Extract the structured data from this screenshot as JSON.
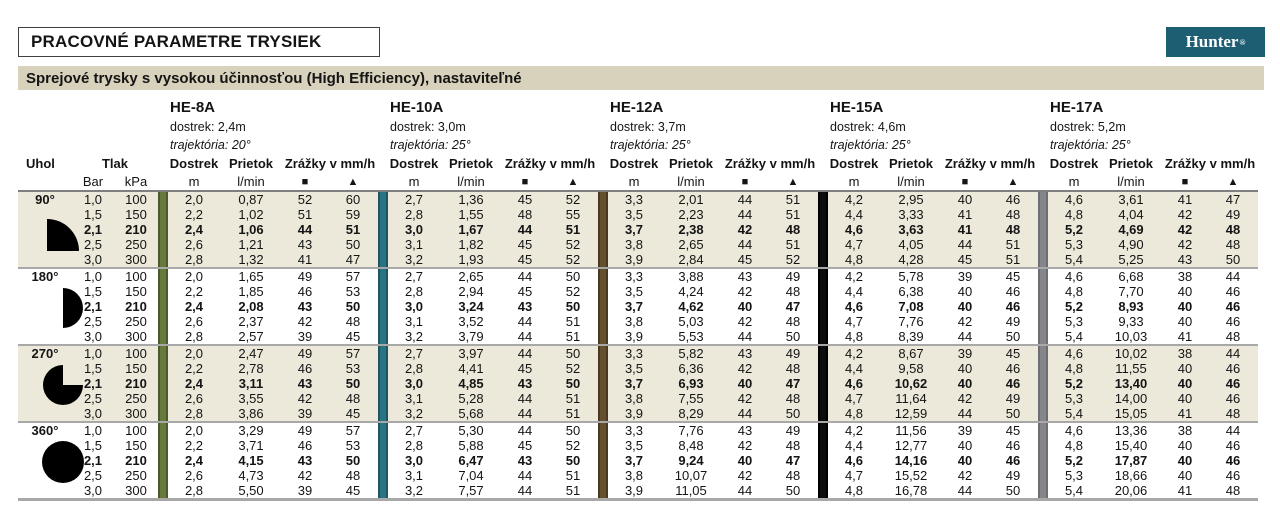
{
  "title": "PRACOVNÉ PARAMETRE TRYSIEK",
  "logo": {
    "text": "Hunter",
    "reg": "®"
  },
  "subtitle": "Sprejové trysky s vysokou účinnosťou (High Efficiency), nastaviteľné",
  "colors": {
    "subtitle_bg": "#d8d2bc",
    "band_bg": "#ece9da",
    "logo_bg": "#1e5e72",
    "head_rule": "#7f7f7f",
    "block_rule": "#a8a8a8"
  },
  "table": {
    "col_headers": {
      "uhol": "Uhol",
      "tlak": "Tlak",
      "bar": "Bar",
      "kpa": "kPa",
      "dostrek": "Dostrek",
      "dostrek_unit": "m",
      "prietok": "Prietok",
      "prietok_unit": "l/min",
      "zrazky": "Zrážky v mm/h",
      "zrazky_square": "■",
      "zrazky_triangle": "▲"
    },
    "nozzles": [
      {
        "name": "HE-8A",
        "dostrek": "dostrek: 2,4m",
        "trajektoria": "trajektória: 20°",
        "bar_color": "#68793e",
        "bar_edge": "#4a5a2b"
      },
      {
        "name": "HE-10A",
        "dostrek": "dostrek: 3,0m",
        "trajektoria": "trajektória: 25°",
        "bar_color": "#2a7382",
        "bar_edge": "#1d5560"
      },
      {
        "name": "HE-12A",
        "dostrek": "dostrek: 3,7m",
        "trajektoria": "trajektória: 25°",
        "bar_color": "#64502f",
        "bar_edge": "#483920"
      },
      {
        "name": "HE-15A",
        "dostrek": "dostrek: 4,6m",
        "trajektoria": "trajektória: 25°",
        "bar_color": "#0d0d0d",
        "bar_edge": "#000000"
      },
      {
        "name": "HE-17A",
        "dostrek": "dostrek: 5,2m",
        "trajektoria": "trajektória: 25°",
        "bar_color": "#84868c",
        "bar_edge": "#6c6e74"
      }
    ],
    "blocks": [
      {
        "angle": "90°",
        "icon": "pie-90",
        "rows": [
          {
            "tlak": [
              "1,0",
              "100"
            ],
            "bold": false,
            "values": [
              [
                "2,0",
                "0,87",
                "52",
                "60"
              ],
              [
                "2,7",
                "1,36",
                "45",
                "52"
              ],
              [
                "3,3",
                "2,01",
                "44",
                "51"
              ],
              [
                "4,2",
                "2,95",
                "40",
                "46"
              ],
              [
                "4,6",
                "3,61",
                "41",
                "47"
              ]
            ]
          },
          {
            "tlak": [
              "1,5",
              "150"
            ],
            "bold": false,
            "values": [
              [
                "2,2",
                "1,02",
                "51",
                "59"
              ],
              [
                "2,8",
                "1,55",
                "48",
                "55"
              ],
              [
                "3,5",
                "2,23",
                "44",
                "51"
              ],
              [
                "4,4",
                "3,33",
                "41",
                "48"
              ],
              [
                "4,8",
                "4,04",
                "42",
                "49"
              ]
            ]
          },
          {
            "tlak": [
              "2,1",
              "210"
            ],
            "bold": true,
            "values": [
              [
                "2,4",
                "1,06",
                "44",
                "51"
              ],
              [
                "3,0",
                "1,67",
                "44",
                "51"
              ],
              [
                "3,7",
                "2,38",
                "42",
                "48"
              ],
              [
                "4,6",
                "3,63",
                "41",
                "48"
              ],
              [
                "5,2",
                "4,69",
                "42",
                "48"
              ]
            ]
          },
          {
            "tlak": [
              "2,5",
              "250"
            ],
            "bold": false,
            "values": [
              [
                "2,6",
                "1,21",
                "43",
                "50"
              ],
              [
                "3,1",
                "1,82",
                "45",
                "52"
              ],
              [
                "3,8",
                "2,65",
                "44",
                "51"
              ],
              [
                "4,7",
                "4,05",
                "44",
                "51"
              ],
              [
                "5,3",
                "4,90",
                "42",
                "48"
              ]
            ]
          },
          {
            "tlak": [
              "3,0",
              "300"
            ],
            "bold": false,
            "values": [
              [
                "2,8",
                "1,32",
                "41",
                "47"
              ],
              [
                "3,2",
                "1,93",
                "45",
                "52"
              ],
              [
                "3,9",
                "2,84",
                "45",
                "52"
              ],
              [
                "4,8",
                "4,28",
                "45",
                "51"
              ],
              [
                "5,4",
                "5,25",
                "43",
                "50"
              ]
            ]
          }
        ]
      },
      {
        "angle": "180°",
        "icon": "pie-180",
        "rows": [
          {
            "tlak": [
              "1,0",
              "100"
            ],
            "bold": false,
            "values": [
              [
                "2,0",
                "1,65",
                "49",
                "57"
              ],
              [
                "2,7",
                "2,65",
                "44",
                "50"
              ],
              [
                "3,3",
                "3,88",
                "43",
                "49"
              ],
              [
                "4,2",
                "5,78",
                "39",
                "45"
              ],
              [
                "4,6",
                "6,68",
                "38",
                "44"
              ]
            ]
          },
          {
            "tlak": [
              "1,5",
              "150"
            ],
            "bold": false,
            "values": [
              [
                "2,2",
                "1,85",
                "46",
                "53"
              ],
              [
                "2,8",
                "2,94",
                "45",
                "52"
              ],
              [
                "3,5",
                "4,24",
                "42",
                "48"
              ],
              [
                "4,4",
                "6,38",
                "40",
                "46"
              ],
              [
                "4,8",
                "7,70",
                "40",
                "46"
              ]
            ]
          },
          {
            "tlak": [
              "2,1",
              "210"
            ],
            "bold": true,
            "values": [
              [
                "2,4",
                "2,08",
                "43",
                "50"
              ],
              [
                "3,0",
                "3,24",
                "43",
                "50"
              ],
              [
                "3,7",
                "4,62",
                "40",
                "47"
              ],
              [
                "4,6",
                "7,08",
                "40",
                "46"
              ],
              [
                "5,2",
                "8,93",
                "40",
                "46"
              ]
            ]
          },
          {
            "tlak": [
              "2,5",
              "250"
            ],
            "bold": false,
            "values": [
              [
                "2,6",
                "2,37",
                "42",
                "48"
              ],
              [
                "3,1",
                "3,52",
                "44",
                "51"
              ],
              [
                "3,8",
                "5,03",
                "42",
                "48"
              ],
              [
                "4,7",
                "7,76",
                "42",
                "49"
              ],
              [
                "5,3",
                "9,33",
                "40",
                "46"
              ]
            ]
          },
          {
            "tlak": [
              "3,0",
              "300"
            ],
            "bold": false,
            "values": [
              [
                "2,8",
                "2,57",
                "39",
                "45"
              ],
              [
                "3,2",
                "3,79",
                "44",
                "51"
              ],
              [
                "3,9",
                "5,53",
                "44",
                "50"
              ],
              [
                "4,8",
                "8,39",
                "44",
                "50"
              ],
              [
                "5,4",
                "10,03",
                "41",
                "48"
              ]
            ]
          }
        ]
      },
      {
        "angle": "270°",
        "icon": "pie-270",
        "rows": [
          {
            "tlak": [
              "1,0",
              "100"
            ],
            "bold": false,
            "values": [
              [
                "2,0",
                "2,47",
                "49",
                "57"
              ],
              [
                "2,7",
                "3,97",
                "44",
                "50"
              ],
              [
                "3,3",
                "5,82",
                "43",
                "49"
              ],
              [
                "4,2",
                "8,67",
                "39",
                "45"
              ],
              [
                "4,6",
                "10,02",
                "38",
                "44"
              ]
            ]
          },
          {
            "tlak": [
              "1,5",
              "150"
            ],
            "bold": false,
            "values": [
              [
                "2,2",
                "2,78",
                "46",
                "53"
              ],
              [
                "2,8",
                "4,41",
                "45",
                "52"
              ],
              [
                "3,5",
                "6,36",
                "42",
                "48"
              ],
              [
                "4,4",
                "9,58",
                "40",
                "46"
              ],
              [
                "4,8",
                "11,55",
                "40",
                "46"
              ]
            ]
          },
          {
            "tlak": [
              "2,1",
              "210"
            ],
            "bold": true,
            "values": [
              [
                "2,4",
                "3,11",
                "43",
                "50"
              ],
              [
                "3,0",
                "4,85",
                "43",
                "50"
              ],
              [
                "3,7",
                "6,93",
                "40",
                "47"
              ],
              [
                "4,6",
                "10,62",
                "40",
                "46"
              ],
              [
                "5,2",
                "13,40",
                "40",
                "46"
              ]
            ]
          },
          {
            "tlak": [
              "2,5",
              "250"
            ],
            "bold": false,
            "values": [
              [
                "2,6",
                "3,55",
                "42",
                "48"
              ],
              [
                "3,1",
                "5,28",
                "44",
                "51"
              ],
              [
                "3,8",
                "7,55",
                "42",
                "48"
              ],
              [
                "4,7",
                "11,64",
                "42",
                "49"
              ],
              [
                "5,3",
                "14,00",
                "40",
                "46"
              ]
            ]
          },
          {
            "tlak": [
              "3,0",
              "300"
            ],
            "bold": false,
            "values": [
              [
                "2,8",
                "3,86",
                "39",
                "45"
              ],
              [
                "3,2",
                "5,68",
                "44",
                "51"
              ],
              [
                "3,9",
                "8,29",
                "44",
                "50"
              ],
              [
                "4,8",
                "12,59",
                "44",
                "50"
              ],
              [
                "5,4",
                "15,05",
                "41",
                "48"
              ]
            ]
          }
        ]
      },
      {
        "angle": "360°",
        "icon": "circle-360",
        "rows": [
          {
            "tlak": [
              "1,0",
              "100"
            ],
            "bold": false,
            "values": [
              [
                "2,0",
                "3,29",
                "49",
                "57"
              ],
              [
                "2,7",
                "5,30",
                "44",
                "50"
              ],
              [
                "3,3",
                "7,76",
                "43",
                "49"
              ],
              [
                "4,2",
                "11,56",
                "39",
                "45"
              ],
              [
                "4,6",
                "13,36",
                "38",
                "44"
              ]
            ]
          },
          {
            "tlak": [
              "1,5",
              "150"
            ],
            "bold": false,
            "values": [
              [
                "2,2",
                "3,71",
                "46",
                "53"
              ],
              [
                "2,8",
                "5,88",
                "45",
                "52"
              ],
              [
                "3,5",
                "8,48",
                "42",
                "48"
              ],
              [
                "4,4",
                "12,77",
                "40",
                "46"
              ],
              [
                "4,8",
                "15,40",
                "40",
                "46"
              ]
            ]
          },
          {
            "tlak": [
              "2,1",
              "210"
            ],
            "bold": true,
            "values": [
              [
                "2,4",
                "4,15",
                "43",
                "50"
              ],
              [
                "3,0",
                "6,47",
                "43",
                "50"
              ],
              [
                "3,7",
                "9,24",
                "40",
                "47"
              ],
              [
                "4,6",
                "14,16",
                "40",
                "46"
              ],
              [
                "5,2",
                "17,87",
                "40",
                "46"
              ]
            ]
          },
          {
            "tlak": [
              "2,5",
              "250"
            ],
            "bold": false,
            "values": [
              [
                "2,6",
                "4,73",
                "42",
                "48"
              ],
              [
                "3,1",
                "7,04",
                "44",
                "51"
              ],
              [
                "3,8",
                "10,07",
                "42",
                "48"
              ],
              [
                "4,7",
                "15,52",
                "42",
                "49"
              ],
              [
                "5,3",
                "18,66",
                "40",
                "46"
              ]
            ]
          },
          {
            "tlak": [
              "3,0",
              "300"
            ],
            "bold": false,
            "values": [
              [
                "2,8",
                "5,50",
                "39",
                "45"
              ],
              [
                "3,2",
                "7,57",
                "44",
                "51"
              ],
              [
                "3,9",
                "11,05",
                "44",
                "50"
              ],
              [
                "4,8",
                "16,78",
                "44",
                "50"
              ],
              [
                "5,4",
                "20,06",
                "41",
                "48"
              ]
            ]
          }
        ]
      }
    ]
  }
}
